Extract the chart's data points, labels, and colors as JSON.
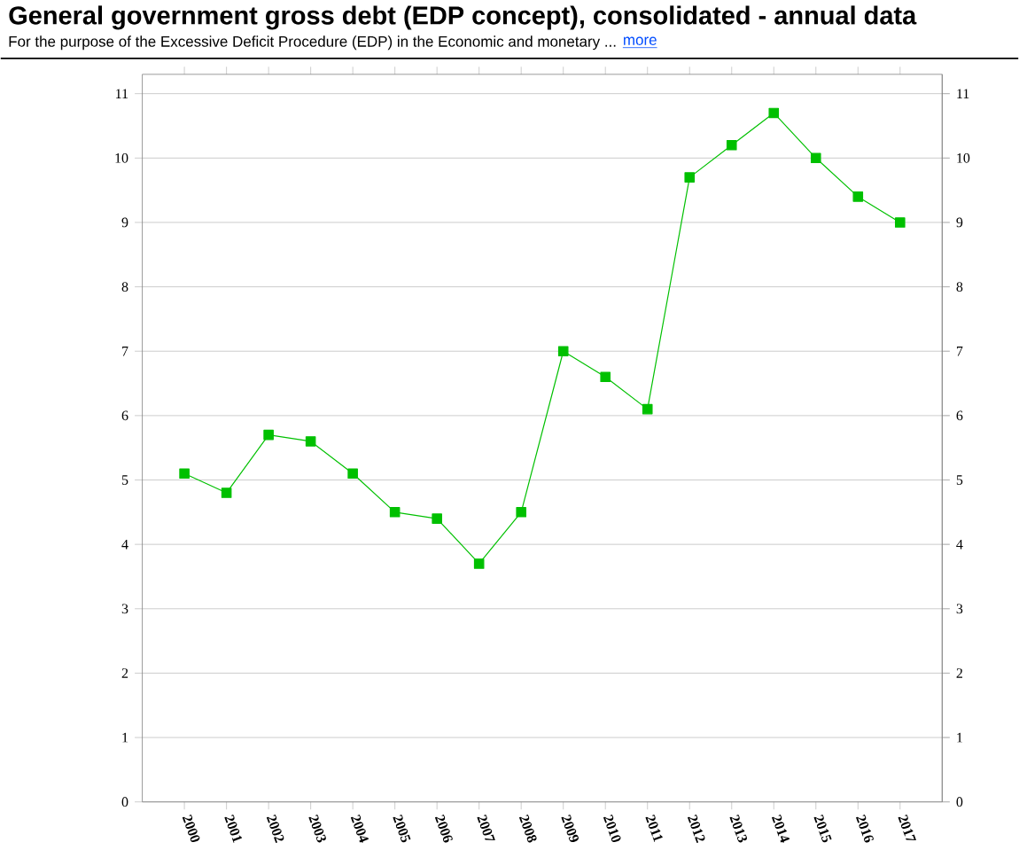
{
  "chart_data": {
    "type": "line",
    "title": "General government gross debt (EDP concept), consolidated - annual data",
    "subtitle": "For the purpose of the Excessive Deficit Procedure (EDP) in the Economic and monetary ...",
    "annotations": [
      "more"
    ],
    "categories": [
      "2000",
      "2001",
      "2002",
      "2003",
      "2004",
      "2005",
      "2006",
      "2007",
      "2008",
      "2009",
      "2010",
      "2011",
      "2012",
      "2013",
      "2014",
      "2015",
      "2016",
      "2017"
    ],
    "values": [
      5.1,
      4.8,
      5.7,
      5.6,
      5.1,
      4.5,
      4.4,
      3.7,
      4.5,
      7.0,
      6.6,
      6.1,
      9.7,
      10.2,
      10.7,
      10.0,
      9.4,
      9.0
    ],
    "color": "#00c000",
    "marker": "square",
    "line_style": "solid",
    "grid": "y",
    "ylim": [
      0,
      11.3
    ],
    "yticks": [
      0,
      1,
      2,
      3,
      4,
      5,
      6,
      7,
      8,
      9,
      10,
      11
    ],
    "y2lim": [
      0,
      11.3
    ],
    "y2ticks": [
      0,
      1,
      2,
      3,
      4,
      5,
      6,
      7,
      8,
      9,
      10,
      11
    ]
  }
}
